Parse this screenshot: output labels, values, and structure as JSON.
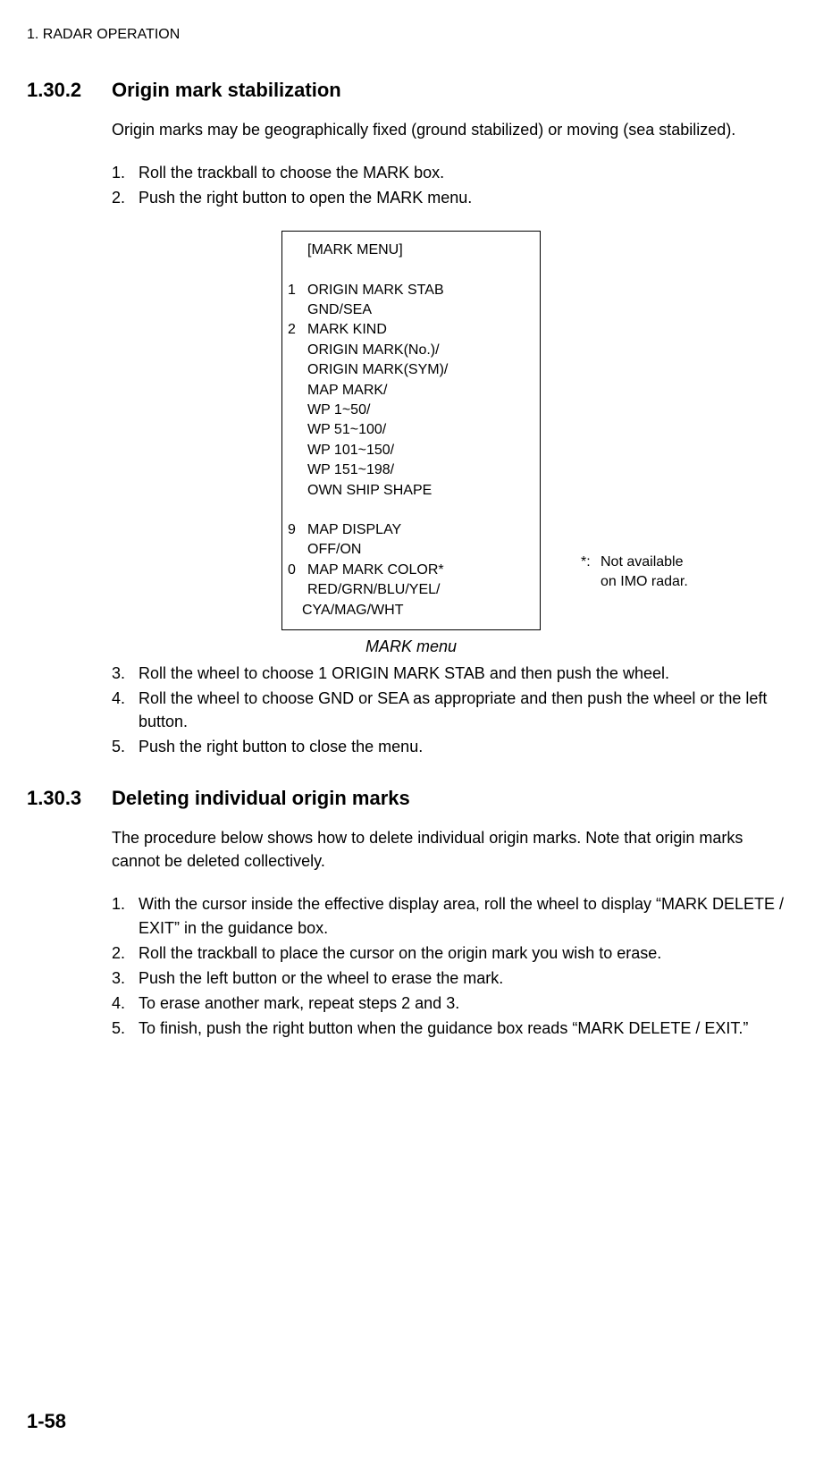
{
  "header": "1. RADAR OPERATION",
  "section1": {
    "number": "1.30.2",
    "title": "Origin mark stabilization",
    "intro": "Origin marks may be geographically fixed (ground stabilized) or moving (sea stabilized).",
    "steps_a": [
      {
        "n": "1.",
        "t": "Roll the trackball to choose the MARK box."
      },
      {
        "n": "2.",
        "t": " Push the right button to open the MARK menu."
      }
    ],
    "menu": {
      "title": "[MARK MENU]",
      "items": [
        {
          "idx": "1",
          "label": "ORIGIN MARK STAB",
          "subs": [
            "GND/SEA"
          ]
        },
        {
          "idx": "2",
          "label": "MARK KIND",
          "subs": [
            "ORIGIN MARK(No.)/",
            "ORIGIN MARK(SYM)/",
            "MAP MARK/",
            "WP 1~50/",
            "WP 51~100/",
            "WP 101~150/",
            "WP 151~198/",
            "OWN SHIP SHAPE"
          ]
        },
        {
          "spacer": true
        },
        {
          "idx": "9",
          "label": "MAP DISPLAY",
          "subs": [
            "OFF/ON"
          ]
        },
        {
          "idx": "0",
          "label": "MAP MARK COLOR*",
          "subs": [
            "RED/GRN/BLU/YEL/",
            "CYA/MAG/WHT"
          ],
          "last_sub_unindent": true
        }
      ],
      "note_ast": "*:",
      "note_text1": "Not available",
      "note_text2": "on IMO radar."
    },
    "figure_caption": "MARK menu",
    "steps_b": [
      {
        "n": "3.",
        "t": "Roll the wheel to choose 1 ORIGIN MARK STAB and then push the wheel."
      },
      {
        "n": "4.",
        "t": "Roll the wheel to choose GND or SEA as appropriate and then push the wheel or the left button."
      },
      {
        "n": "5.",
        "t": "Push the right button to close the menu."
      }
    ]
  },
  "section2": {
    "number": "1.30.3",
    "title": "Deleting individual origin marks",
    "intro": "The procedure below shows how to delete individual origin marks. Note that origin marks cannot be deleted collectively.",
    "steps": [
      {
        "n": "1.",
        "t": "With the cursor inside the effective display area, roll the wheel to display “MARK DELETE / EXIT” in the guidance box."
      },
      {
        "n": "2.",
        "t": "Roll the trackball to place the cursor on the origin mark you wish to erase."
      },
      {
        "n": "3.",
        "t": "Push the left button or the wheel to erase the mark."
      },
      {
        "n": "4.",
        "t": "To erase another mark, repeat steps 2 and 3."
      },
      {
        "n": "5.",
        "t": "To finish, push the right button when the guidance box reads “MARK DELETE / EXIT.”"
      }
    ]
  },
  "page_number": "1-58"
}
